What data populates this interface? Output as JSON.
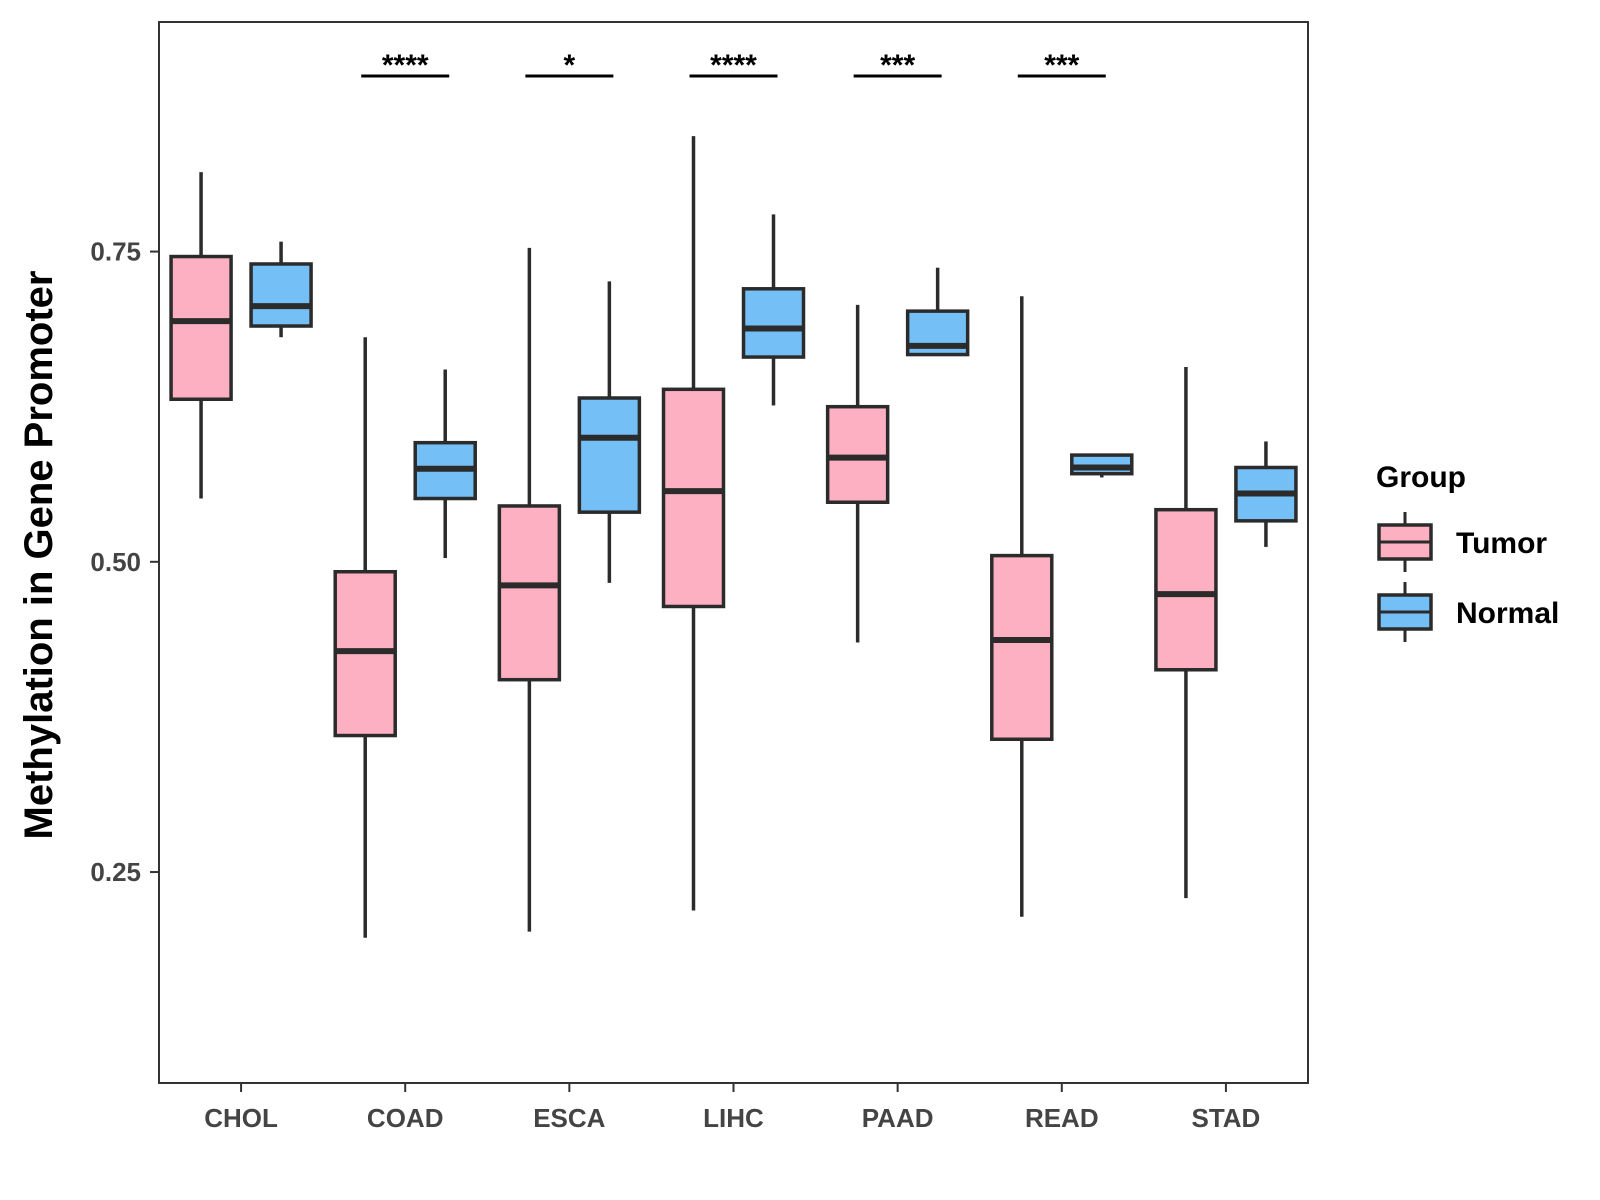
{
  "chart_data": {
    "type": "boxplot",
    "ylabel": "Methylation in Gene Promoter",
    "xlabel": "",
    "ylim": [
      0.08,
      0.935
    ],
    "yticks": [
      0.25,
      0.5,
      0.75
    ],
    "ytick_labels": [
      "0.25",
      "0.50",
      "0.75"
    ],
    "categories": [
      "CHOL",
      "COAD",
      "ESCA",
      "LIHC",
      "PAAD",
      "READ",
      "STAD"
    ],
    "legend": {
      "title": "Group",
      "position": "right",
      "entries": [
        {
          "name": "Tumor",
          "color": "#FCB0C2"
        },
        {
          "name": "Normal",
          "color": "#74BFF5"
        }
      ]
    },
    "series": [
      {
        "name": "Tumor",
        "color": "#FCB0C2",
        "boxes": [
          {
            "category": "CHOL",
            "whisker_low": 0.551,
            "q1": 0.631,
            "median": 0.694,
            "q3": 0.746,
            "whisker_high": 0.814
          },
          {
            "category": "COAD",
            "whisker_low": 0.197,
            "q1": 0.36,
            "median": 0.428,
            "q3": 0.492,
            "whisker_high": 0.681
          },
          {
            "category": "ESCA",
            "whisker_low": 0.202,
            "q1": 0.405,
            "median": 0.481,
            "q3": 0.545,
            "whisker_high": 0.753
          },
          {
            "category": "LIHC",
            "whisker_low": 0.219,
            "q1": 0.464,
            "median": 0.557,
            "q3": 0.639,
            "whisker_high": 0.843
          },
          {
            "category": "PAAD",
            "whisker_low": 0.435,
            "q1": 0.548,
            "median": 0.584,
            "q3": 0.625,
            "whisker_high": 0.707
          },
          {
            "category": "READ",
            "whisker_low": 0.214,
            "q1": 0.357,
            "median": 0.437,
            "q3": 0.505,
            "whisker_high": 0.714
          },
          {
            "category": "STAD",
            "whisker_low": 0.229,
            "q1": 0.413,
            "median": 0.474,
            "q3": 0.542,
            "whisker_high": 0.657
          }
        ]
      },
      {
        "name": "Normal",
        "color": "#74BFF5",
        "boxes": [
          {
            "category": "CHOL",
            "whisker_low": 0.681,
            "q1": 0.69,
            "median": 0.706,
            "q3": 0.74,
            "whisker_high": 0.758
          },
          {
            "category": "COAD",
            "whisker_low": 0.503,
            "q1": 0.551,
            "median": 0.575,
            "q3": 0.596,
            "whisker_high": 0.655
          },
          {
            "category": "ESCA",
            "whisker_low": 0.483,
            "q1": 0.54,
            "median": 0.6,
            "q3": 0.632,
            "whisker_high": 0.726
          },
          {
            "category": "LIHC",
            "whisker_low": 0.626,
            "q1": 0.665,
            "median": 0.688,
            "q3": 0.72,
            "whisker_high": 0.78
          },
          {
            "category": "PAAD",
            "whisker_low": 0.667,
            "q1": 0.667,
            "median": 0.674,
            "q3": 0.702,
            "whisker_high": 0.737
          },
          {
            "category": "READ",
            "whisker_low": 0.568,
            "q1": 0.571,
            "median": 0.576,
            "q3": 0.586,
            "whisker_high": 0.586
          },
          {
            "category": "STAD",
            "whisker_low": 0.512,
            "q1": 0.533,
            "median": 0.555,
            "q3": 0.576,
            "whisker_high": 0.597
          }
        ]
      }
    ],
    "significance": [
      {
        "category": "COAD",
        "label": "****"
      },
      {
        "category": "ESCA",
        "label": "*"
      },
      {
        "category": "LIHC",
        "label": "****"
      },
      {
        "category": "PAAD",
        "label": "***"
      },
      {
        "category": "READ",
        "label": "***"
      }
    ],
    "grid": false
  }
}
